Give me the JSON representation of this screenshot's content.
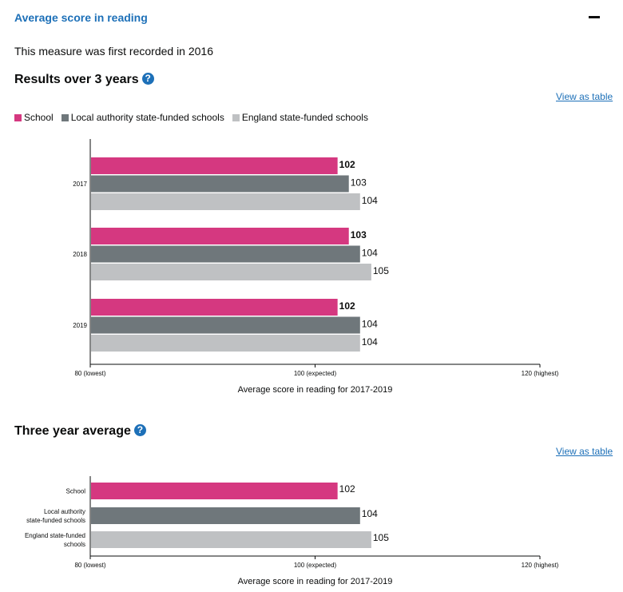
{
  "section": {
    "title": "Average score in reading",
    "first_recorded": "This measure was first recorded in 2016"
  },
  "results": {
    "heading": "Results over 3 years",
    "view_table": "View as table"
  },
  "average": {
    "heading": "Three year average",
    "view_table": "View as table"
  },
  "help_icon": "?",
  "colors": {
    "school": "#d53880",
    "la": "#6f777b",
    "england": "#bfc1c3"
  },
  "chart_data": [
    {
      "type": "bar",
      "orientation": "horizontal",
      "categories": [
        "2017",
        "2018",
        "2019"
      ],
      "series": [
        {
          "name": "School",
          "values": [
            102,
            103,
            102
          ]
        },
        {
          "name": "Local authority state-funded schools",
          "values": [
            103,
            104,
            104
          ]
        },
        {
          "name": "England state-funded schools",
          "values": [
            104,
            105,
            104
          ]
        }
      ],
      "xlim": [
        80,
        120
      ],
      "xticks": [
        "80 (lowest)",
        "100 (expected)",
        "120 (highest)"
      ],
      "xlabel": "Average score in reading for 2017-2019",
      "legend": "top-left"
    },
    {
      "type": "bar",
      "orientation": "horizontal",
      "categories": [
        "School",
        "Local authority state-funded schools",
        "England state-funded schools"
      ],
      "category_lines": [
        [
          "School"
        ],
        [
          "Local authority",
          "state-funded schools"
        ],
        [
          "England state-funded",
          "schools"
        ]
      ],
      "values": [
        102,
        104,
        105
      ],
      "xlim": [
        80,
        120
      ],
      "xticks": [
        "80 (lowest)",
        "100 (expected)",
        "120 (highest)"
      ],
      "xlabel": "Average score in reading for 2017-2019"
    }
  ]
}
